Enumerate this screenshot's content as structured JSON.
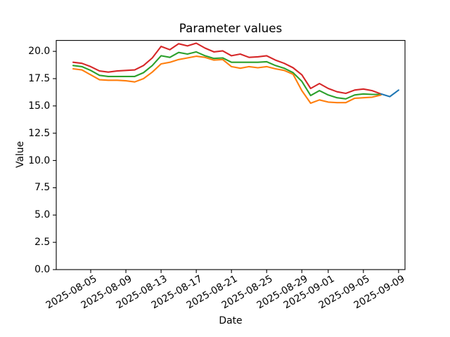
{
  "chart_data": {
    "type": "line",
    "title": "Parameter values",
    "xlabel": "Date",
    "ylabel": "Value",
    "ylim": [
      0,
      21
    ],
    "grid": false,
    "legend": "none",
    "background": "#ffffff",
    "x_tick_labels": [
      "2025-08-05",
      "2025-08-09",
      "2025-08-13",
      "2025-08-17",
      "2025-08-21",
      "2025-08-25",
      "2025-08-29",
      "2025-09-01",
      "2025-09-05",
      "2025-09-09"
    ],
    "y_tick_labels": [
      "0.0",
      "2.5",
      "5.0",
      "7.5",
      "10.0",
      "12.5",
      "15.0",
      "17.5",
      "20.0"
    ],
    "series": [
      {
        "name": "red",
        "color": "#d62728",
        "dates": [
          "2025-08-03",
          "2025-08-04",
          "2025-08-05",
          "2025-08-06",
          "2025-08-07",
          "2025-08-08",
          "2025-08-09",
          "2025-08-10",
          "2025-08-11",
          "2025-08-12",
          "2025-08-13",
          "2025-08-14",
          "2025-08-15",
          "2025-08-16",
          "2025-08-17",
          "2025-08-18",
          "2025-08-19",
          "2025-08-20",
          "2025-08-21",
          "2025-08-22",
          "2025-08-23",
          "2025-08-24",
          "2025-08-25",
          "2025-08-26",
          "2025-08-27",
          "2025-08-28",
          "2025-08-29",
          "2025-08-30",
          "2025-08-31",
          "2025-09-01",
          "2025-09-02",
          "2025-09-03",
          "2025-09-04",
          "2025-09-05",
          "2025-09-06",
          "2025-09-07"
        ],
        "values": [
          19.0,
          18.9,
          18.6,
          18.2,
          18.1,
          18.2,
          18.25,
          18.3,
          18.7,
          19.4,
          20.45,
          20.15,
          20.7,
          20.5,
          20.75,
          20.3,
          19.95,
          20.05,
          19.6,
          19.75,
          19.45,
          19.5,
          19.6,
          19.2,
          18.9,
          18.5,
          17.85,
          16.6,
          17.05,
          16.6,
          16.3,
          16.15,
          16.45,
          16.55,
          16.4,
          16.1
        ]
      },
      {
        "name": "green",
        "color": "#2ca02c",
        "dates": [
          "2025-08-03",
          "2025-08-04",
          "2025-08-05",
          "2025-08-06",
          "2025-08-07",
          "2025-08-08",
          "2025-08-09",
          "2025-08-10",
          "2025-08-11",
          "2025-08-12",
          "2025-08-13",
          "2025-08-14",
          "2025-08-15",
          "2025-08-16",
          "2025-08-17",
          "2025-08-18",
          "2025-08-19",
          "2025-08-20",
          "2025-08-21",
          "2025-08-22",
          "2025-08-23",
          "2025-08-24",
          "2025-08-25",
          "2025-08-26",
          "2025-08-27",
          "2025-08-28",
          "2025-08-29",
          "2025-08-30",
          "2025-08-31",
          "2025-09-01",
          "2025-09-02",
          "2025-09-03",
          "2025-09-04",
          "2025-09-05",
          "2025-09-06",
          "2025-09-07"
        ],
        "values": [
          18.7,
          18.6,
          18.25,
          17.8,
          17.7,
          17.7,
          17.7,
          17.7,
          18.05,
          18.7,
          19.6,
          19.45,
          19.9,
          19.75,
          19.95,
          19.6,
          19.35,
          19.4,
          19.0,
          19.0,
          19.0,
          19.0,
          19.05,
          18.7,
          18.45,
          18.05,
          17.25,
          15.95,
          16.4,
          16.0,
          15.75,
          15.65,
          16.0,
          16.1,
          16.05,
          16.05
        ]
      },
      {
        "name": "orange",
        "color": "#ff7f0e",
        "dates": [
          "2025-08-03",
          "2025-08-04",
          "2025-08-05",
          "2025-08-06",
          "2025-08-07",
          "2025-08-08",
          "2025-08-09",
          "2025-08-10",
          "2025-08-11",
          "2025-08-12",
          "2025-08-13",
          "2025-08-14",
          "2025-08-15",
          "2025-08-16",
          "2025-08-17",
          "2025-08-18",
          "2025-08-19",
          "2025-08-20",
          "2025-08-21",
          "2025-08-22",
          "2025-08-23",
          "2025-08-24",
          "2025-08-25",
          "2025-08-26",
          "2025-08-27",
          "2025-08-28",
          "2025-08-29",
          "2025-08-30",
          "2025-08-31",
          "2025-09-01",
          "2025-09-02",
          "2025-09-03",
          "2025-09-04",
          "2025-09-05",
          "2025-09-06",
          "2025-09-07"
        ],
        "values": [
          18.4,
          18.3,
          17.85,
          17.4,
          17.35,
          17.35,
          17.3,
          17.2,
          17.5,
          18.1,
          18.85,
          19.0,
          19.25,
          19.4,
          19.55,
          19.45,
          19.2,
          19.25,
          18.6,
          18.45,
          18.6,
          18.5,
          18.6,
          18.4,
          18.25,
          17.9,
          16.4,
          15.25,
          15.55,
          15.35,
          15.3,
          15.3,
          15.7,
          15.75,
          15.8,
          16.0
        ]
      },
      {
        "name": "blue",
        "color": "#1f77b4",
        "dates": [
          "2025-09-07",
          "2025-09-08",
          "2025-09-09"
        ],
        "values": [
          16.1,
          15.85,
          16.45
        ]
      }
    ]
  }
}
